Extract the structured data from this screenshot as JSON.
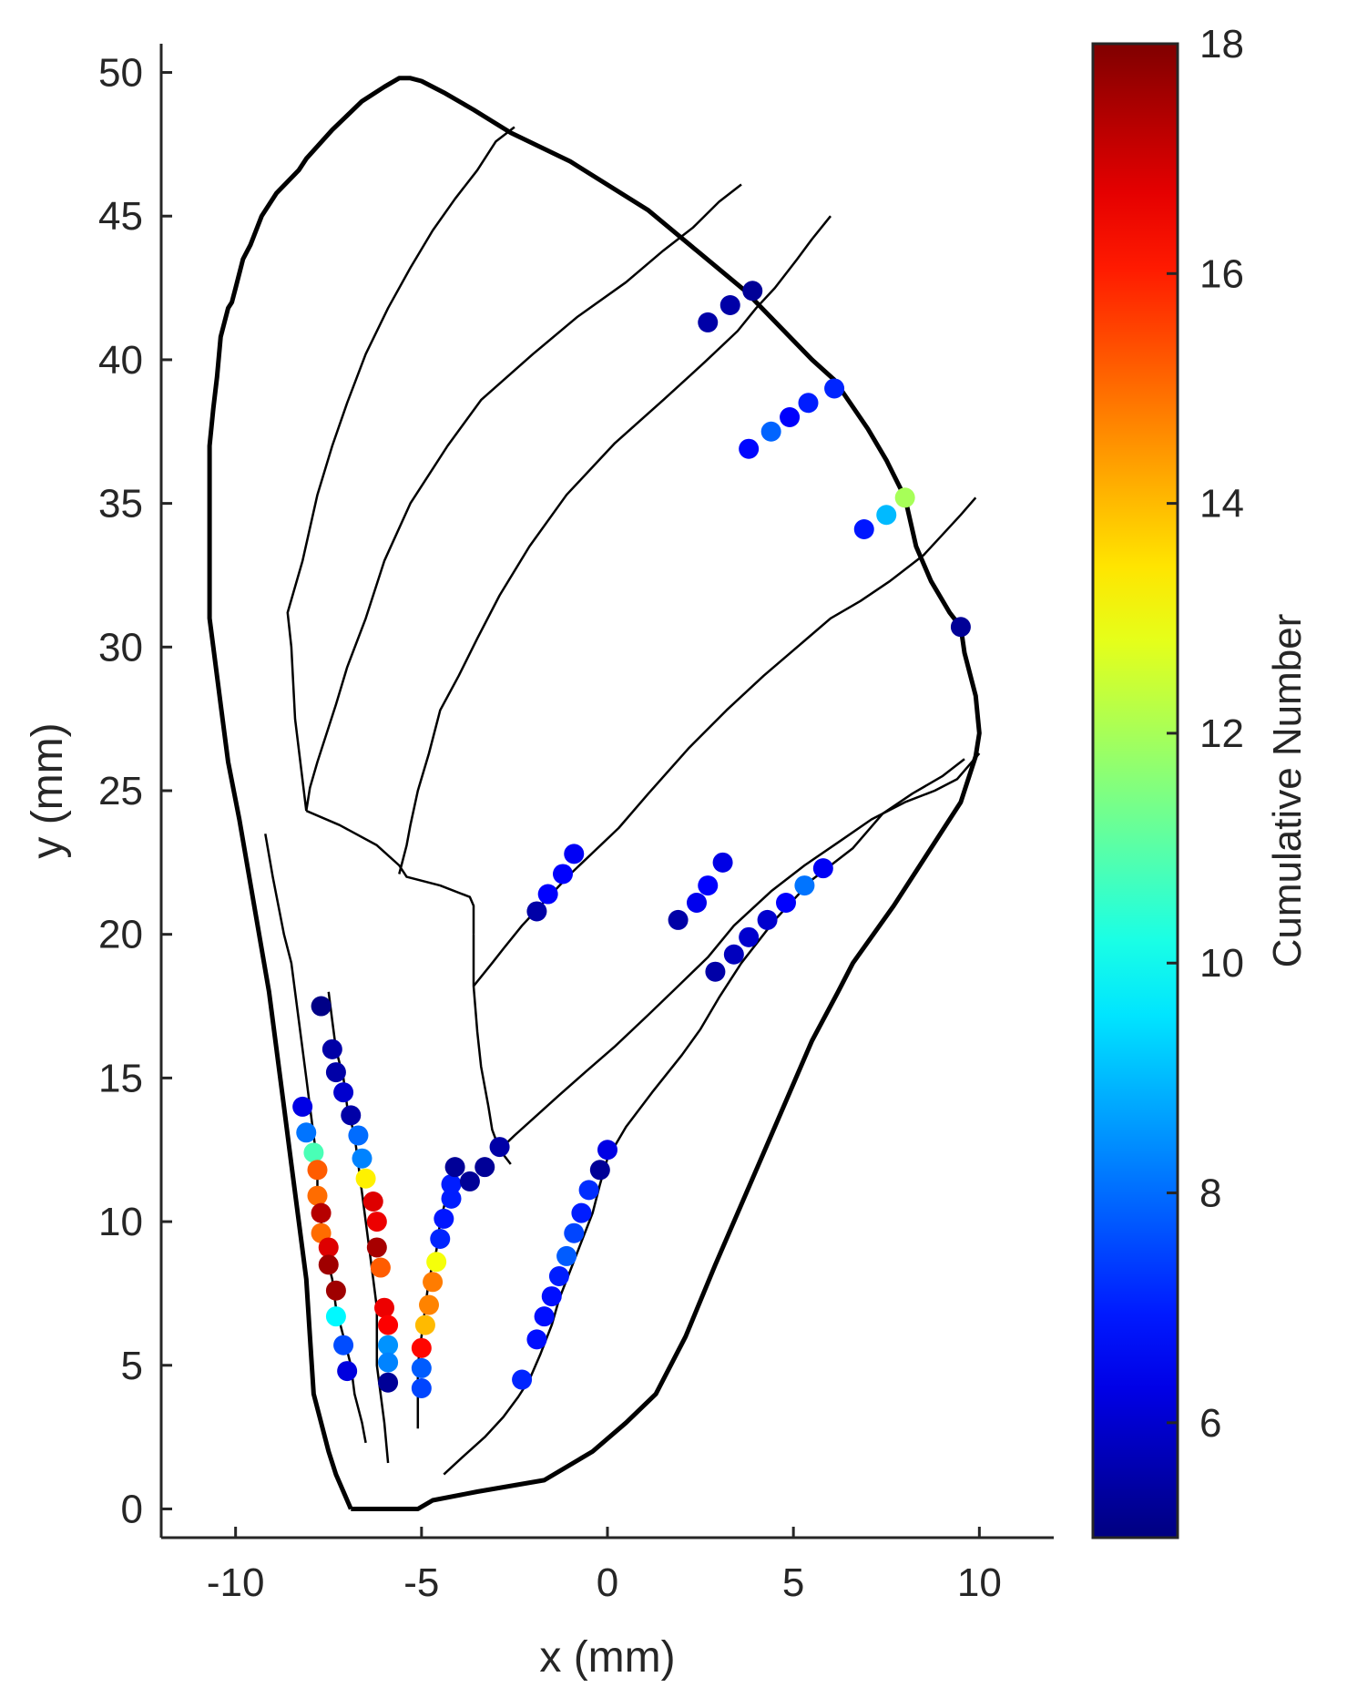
{
  "chart_data": {
    "type": "scatter",
    "title": "",
    "xlabel": "x (mm)",
    "ylabel": "y (mm)",
    "xlim": [
      -12,
      12
    ],
    "ylim": [
      -1,
      51
    ],
    "xticks": [
      -10,
      -5,
      0,
      5,
      10
    ],
    "yticks": [
      0,
      5,
      10,
      15,
      20,
      25,
      30,
      35,
      40,
      45,
      50
    ],
    "grid": false,
    "colorbar": {
      "label": "Cumulative Number",
      "range": [
        5,
        18
      ],
      "ticks": [
        6,
        8,
        10,
        12,
        14,
        16,
        18
      ],
      "colormap": "jet"
    },
    "outline": [
      [
        -6.9,
        0
      ],
      [
        -5.1,
        0
      ],
      [
        -4.7,
        0.3
      ],
      [
        -3.5,
        0.6
      ],
      [
        -1.7,
        1
      ],
      [
        -0.4,
        2
      ],
      [
        0.5,
        3
      ],
      [
        1.3,
        4
      ],
      [
        2.1,
        6
      ],
      [
        2.9,
        8.5
      ],
      [
        3.9,
        11.5
      ],
      [
        4.9,
        14.5
      ],
      [
        5.5,
        16.3
      ],
      [
        6.2,
        18
      ],
      [
        6.6,
        19
      ],
      [
        7.7,
        21
      ],
      [
        8.6,
        22.8
      ],
      [
        9.5,
        24.6
      ],
      [
        9.9,
        26.2
      ],
      [
        10,
        27
      ],
      [
        9.9,
        28.3
      ],
      [
        9.6,
        29.8
      ],
      [
        9.5,
        30.7
      ],
      [
        9.2,
        31.2
      ],
      [
        8.7,
        32.3
      ],
      [
        8.3,
        33.5
      ],
      [
        8,
        35.2
      ],
      [
        7.5,
        36.5
      ],
      [
        7,
        37.6
      ],
      [
        6.1,
        39.3
      ],
      [
        5.5,
        40
      ],
      [
        3.7,
        42.4
      ],
      [
        2.4,
        43.8
      ],
      [
        1.1,
        45.2
      ],
      [
        -1,
        46.9
      ],
      [
        -2.6,
        47.9
      ],
      [
        -3.6,
        48.7
      ],
      [
        -4.4,
        49.3
      ],
      [
        -5,
        49.7
      ],
      [
        -5.3,
        49.8
      ],
      [
        -5.6,
        49.8
      ],
      [
        -6,
        49.5
      ],
      [
        -6.6,
        49
      ],
      [
        -7.4,
        48
      ],
      [
        -8.1,
        47
      ],
      [
        -8.3,
        46.6
      ],
      [
        -8.9,
        45.8
      ],
      [
        -9.3,
        45
      ],
      [
        -9.6,
        44
      ],
      [
        -9.8,
        43.5
      ],
      [
        -10,
        42.5
      ],
      [
        -10.1,
        42
      ],
      [
        -10.2,
        41.8
      ],
      [
        -10.4,
        40.8
      ],
      [
        -10.5,
        39.4
      ],
      [
        -10.6,
        38.3
      ],
      [
        -10.7,
        37
      ],
      [
        -10.7,
        36
      ],
      [
        -10.7,
        34.2
      ],
      [
        -10.7,
        31
      ],
      [
        -10.6,
        30
      ],
      [
        -10.4,
        28
      ],
      [
        -10.2,
        26
      ],
      [
        -9.9,
        24
      ],
      [
        -9.5,
        21
      ],
      [
        -9.1,
        18
      ],
      [
        -8.9,
        16
      ],
      [
        -8.7,
        14
      ],
      [
        -8.5,
        12
      ],
      [
        -8.3,
        10
      ],
      [
        -8.1,
        8
      ],
      [
        -8,
        6
      ],
      [
        -7.9,
        4
      ],
      [
        -7.7,
        3
      ],
      [
        -7.5,
        2
      ],
      [
        -7.3,
        1.2
      ],
      [
        -7,
        0.3
      ],
      [
        -6.9,
        0
      ]
    ],
    "inner_curves": [
      [
        [
          -9.2,
          23.5
        ],
        [
          -9,
          22
        ],
        [
          -8.7,
          20
        ],
        [
          -8.5,
          19
        ],
        [
          -8.4,
          18
        ],
        [
          -8.3,
          17
        ],
        [
          -8.2,
          16
        ],
        [
          -8.1,
          15
        ],
        [
          -8,
          14
        ],
        [
          -7.9,
          13
        ],
        [
          -7.8,
          12
        ],
        [
          -7.8,
          11
        ],
        [
          -7.7,
          10
        ],
        [
          -7.6,
          9
        ],
        [
          -7.4,
          8
        ],
        [
          -7.3,
          7
        ],
        [
          -7.1,
          6
        ],
        [
          -6.9,
          5
        ],
        [
          -6.8,
          4
        ],
        [
          -6.6,
          3
        ],
        [
          -6.5,
          2.3
        ]
      ],
      [
        [
          -7.5,
          18
        ],
        [
          -7.4,
          17
        ],
        [
          -7.3,
          16
        ],
        [
          -7.1,
          15
        ],
        [
          -7,
          14
        ],
        [
          -6.8,
          13
        ],
        [
          -6.7,
          12
        ],
        [
          -6.6,
          11
        ],
        [
          -6.5,
          10
        ],
        [
          -6.4,
          9
        ],
        [
          -6.3,
          8
        ],
        [
          -6.2,
          7
        ],
        [
          -6.2,
          6
        ],
        [
          -6.2,
          5
        ],
        [
          -6.1,
          4
        ],
        [
          -6,
          3
        ],
        [
          -5.9,
          1.6
        ]
      ],
      [
        [
          -4.1,
          11.8
        ],
        [
          -4.3,
          11
        ],
        [
          -4.5,
          10
        ],
        [
          -4.6,
          9
        ],
        [
          -4.8,
          8
        ],
        [
          -4.9,
          7
        ],
        [
          -5,
          6
        ],
        [
          -5.1,
          5
        ],
        [
          -5.1,
          4
        ],
        [
          -5.1,
          3.5
        ],
        [
          -5.1,
          2.8
        ]
      ],
      [
        [
          -4.4,
          1.2
        ],
        [
          -3.9,
          1.8
        ],
        [
          -3.3,
          2.5
        ],
        [
          -2.8,
          3.2
        ],
        [
          -2.4,
          3.9
        ],
        [
          -2.1,
          4.5
        ],
        [
          -1.8,
          5.4
        ],
        [
          -1.5,
          6.4
        ],
        [
          -1.3,
          7.3
        ],
        [
          -1,
          8.3
        ],
        [
          -0.7,
          9.3
        ],
        [
          -0.4,
          10.3
        ],
        [
          -0.2,
          11.3
        ],
        [
          0,
          12.2
        ],
        [
          0.5,
          13.3
        ],
        [
          1.2,
          14.5
        ],
        [
          2,
          15.8
        ],
        [
          2.5,
          16.7
        ],
        [
          3,
          17.8
        ],
        [
          3.6,
          19
        ],
        [
          4.5,
          20.5
        ],
        [
          5.5,
          21.9
        ],
        [
          6.6,
          23
        ],
        [
          7.4,
          24.2
        ],
        [
          8.2,
          24.9
        ],
        [
          9,
          25.5
        ],
        [
          9.6,
          26.1
        ]
      ],
      [
        [
          -8.1,
          24.3
        ],
        [
          -8,
          25.1
        ],
        [
          -7.8,
          26
        ],
        [
          -7.3,
          28
        ],
        [
          -7,
          29.3
        ],
        [
          -6.5,
          31
        ],
        [
          -6,
          33
        ],
        [
          -5.3,
          35
        ],
        [
          -4.3,
          37
        ],
        [
          -3.4,
          38.6
        ],
        [
          -2,
          40.2
        ],
        [
          -0.8,
          41.5
        ],
        [
          0.5,
          42.7
        ],
        [
          1.5,
          43.8
        ],
        [
          2.3,
          44.6
        ],
        [
          3,
          45.5
        ],
        [
          3.6,
          46.1
        ]
      ],
      [
        [
          -8.1,
          24.3
        ],
        [
          -7.2,
          23.8
        ],
        [
          -6.2,
          23.1
        ],
        [
          -5.6,
          22.4
        ],
        [
          -5.4,
          22
        ],
        [
          -4.5,
          21.7
        ],
        [
          -3.7,
          21.3
        ],
        [
          -3.6,
          21
        ],
        [
          -3.6,
          20
        ]
      ],
      [
        [
          -5.6,
          22.1
        ],
        [
          -5.4,
          23.1
        ],
        [
          -5.3,
          23.8
        ],
        [
          -5.1,
          25
        ],
        [
          -4.8,
          26.3
        ],
        [
          -4.5,
          27.8
        ],
        [
          -4,
          29
        ],
        [
          -3.5,
          30.3
        ],
        [
          -2.9,
          31.8
        ],
        [
          -2.1,
          33.5
        ],
        [
          -1.1,
          35.3
        ],
        [
          0.2,
          37.1
        ],
        [
          1.5,
          38.6
        ],
        [
          2.6,
          39.9
        ],
        [
          3.5,
          41
        ],
        [
          4,
          41.8
        ],
        [
          4.5,
          42.5
        ],
        [
          5.1,
          43.5
        ],
        [
          5.5,
          44.2
        ],
        [
          6,
          45
        ]
      ],
      [
        [
          -3.6,
          20
        ],
        [
          -3.6,
          18.2
        ],
        [
          -3.5,
          16.6
        ],
        [
          -3.4,
          15.4
        ],
        [
          -3.2,
          14
        ],
        [
          -3.1,
          13.2
        ],
        [
          -2.9,
          12.5
        ],
        [
          -2.6,
          12
        ]
      ],
      [
        [
          -3.6,
          18.2
        ],
        [
          -3.1,
          19
        ],
        [
          -2.8,
          19.5
        ],
        [
          -2.3,
          20.3
        ],
        [
          -1.8,
          21
        ],
        [
          -1,
          22.1
        ],
        [
          0.3,
          23.7
        ],
        [
          1.1,
          24.9
        ],
        [
          2.2,
          26.5
        ],
        [
          3.2,
          27.8
        ],
        [
          4.2,
          29
        ],
        [
          5.1,
          30
        ],
        [
          6,
          31
        ],
        [
          6.8,
          31.6
        ],
        [
          7.6,
          32.3
        ],
        [
          8.5,
          33.2
        ],
        [
          9,
          33.9
        ],
        [
          9.5,
          34.6
        ],
        [
          9.9,
          35.2
        ]
      ],
      [
        [
          -2.9,
          12.5
        ],
        [
          -2.5,
          13
        ],
        [
          -1.9,
          13.7
        ],
        [
          -1.3,
          14.4
        ],
        [
          -0.6,
          15.2
        ],
        [
          0.2,
          16.1
        ],
        [
          1.1,
          17.2
        ],
        [
          1.9,
          18.2
        ],
        [
          2.7,
          19.2
        ],
        [
          3.4,
          20.3
        ],
        [
          4.4,
          21.5
        ],
        [
          5.3,
          22.4
        ],
        [
          6.2,
          23.2
        ],
        [
          7.1,
          24
        ],
        [
          8,
          24.6
        ],
        [
          8.8,
          25
        ],
        [
          9.4,
          25.4
        ],
        [
          9.6,
          25.7
        ],
        [
          10,
          26.3
        ]
      ],
      [
        [
          -8.1,
          24.3
        ],
        [
          -8.4,
          27.5
        ],
        [
          -8.5,
          30
        ],
        [
          -8.6,
          31.2
        ],
        [
          -8.2,
          33
        ],
        [
          -7.8,
          35.3
        ],
        [
          -7.4,
          37
        ],
        [
          -7,
          38.5
        ],
        [
          -6.5,
          40.2
        ],
        [
          -5.9,
          41.8
        ],
        [
          -5.3,
          43.2
        ],
        [
          -4.7,
          44.5
        ],
        [
          -4.1,
          45.6
        ],
        [
          -3.5,
          46.6
        ],
        [
          -3,
          47.6
        ],
        [
          -2.5,
          48.1
        ]
      ]
    ],
    "points": [
      {
        "x": -7.7,
        "y": 17.5,
        "v": 5.1
      },
      {
        "x": -7.4,
        "y": 16.0,
        "v": 5.5
      },
      {
        "x": -7.3,
        "y": 15.2,
        "v": 5.5
      },
      {
        "x": -7.1,
        "y": 14.5,
        "v": 6.0
      },
      {
        "x": -6.9,
        "y": 13.7,
        "v": 5.5
      },
      {
        "x": -6.7,
        "y": 13.0,
        "v": 8.0
      },
      {
        "x": -6.6,
        "y": 12.2,
        "v": 8.3
      },
      {
        "x": -6.5,
        "y": 11.5,
        "v": 13.3
      },
      {
        "x": -6.3,
        "y": 10.7,
        "v": 16.8
      },
      {
        "x": -6.2,
        "y": 10.0,
        "v": 16.6
      },
      {
        "x": -6.2,
        "y": 9.1,
        "v": 17.5
      },
      {
        "x": -6.1,
        "y": 8.4,
        "v": 15.2
      },
      {
        "x": -6.0,
        "y": 7.0,
        "v": 16.6
      },
      {
        "x": -5.9,
        "y": 6.4,
        "v": 16.4
      },
      {
        "x": -5.9,
        "y": 5.7,
        "v": 8.5
      },
      {
        "x": -5.9,
        "y": 5.1,
        "v": 8.3
      },
      {
        "x": -5.9,
        "y": 4.4,
        "v": 5.3
      },
      {
        "x": -8.2,
        "y": 14.0,
        "v": 6.3
      },
      {
        "x": -8.1,
        "y": 13.1,
        "v": 8.1
      },
      {
        "x": -7.9,
        "y": 12.4,
        "v": 10.8
      },
      {
        "x": -7.8,
        "y": 11.8,
        "v": 15.2
      },
      {
        "x": -7.8,
        "y": 10.9,
        "v": 15.0
      },
      {
        "x": -7.7,
        "y": 10.3,
        "v": 17.3
      },
      {
        "x": -7.7,
        "y": 9.6,
        "v": 15.0
      },
      {
        "x": -7.5,
        "y": 9.1,
        "v": 16.8
      },
      {
        "x": -7.5,
        "y": 8.5,
        "v": 17.6
      },
      {
        "x": -7.3,
        "y": 7.6,
        "v": 17.6
      },
      {
        "x": -7.3,
        "y": 6.7,
        "v": 9.8
      },
      {
        "x": -7.1,
        "y": 5.7,
        "v": 7.6
      },
      {
        "x": -7.0,
        "y": 4.8,
        "v": 6.2
      },
      {
        "x": -4.6,
        "y": 8.6,
        "v": 13.0
      },
      {
        "x": -4.7,
        "y": 7.9,
        "v": 14.8
      },
      {
        "x": -4.8,
        "y": 7.1,
        "v": 14.7
      },
      {
        "x": -4.9,
        "y": 6.4,
        "v": 14.0
      },
      {
        "x": -5.0,
        "y": 5.6,
        "v": 16.3
      },
      {
        "x": -5.0,
        "y": 4.9,
        "v": 7.8
      },
      {
        "x": -5.0,
        "y": 4.2,
        "v": 7.5
      },
      {
        "x": -4.5,
        "y": 9.4,
        "v": 7.1
      },
      {
        "x": -4.4,
        "y": 10.1,
        "v": 6.9
      },
      {
        "x": -4.2,
        "y": 10.8,
        "v": 7.0
      },
      {
        "x": -4.2,
        "y": 11.3,
        "v": 7.0
      },
      {
        "x": -4.1,
        "y": 11.9,
        "v": 5.3
      },
      {
        "x": -3.7,
        "y": 11.4,
        "v": 5.3
      },
      {
        "x": -3.3,
        "y": 11.9,
        "v": 5.3
      },
      {
        "x": -2.9,
        "y": 12.6,
        "v": 5.5
      },
      {
        "x": -2.3,
        "y": 4.5,
        "v": 7.1
      },
      {
        "x": -1.9,
        "y": 5.9,
        "v": 6.8
      },
      {
        "x": -1.7,
        "y": 6.7,
        "v": 6.8
      },
      {
        "x": -1.5,
        "y": 7.4,
        "v": 6.8
      },
      {
        "x": -1.3,
        "y": 8.1,
        "v": 7.0
      },
      {
        "x": -1.1,
        "y": 8.8,
        "v": 7.8
      },
      {
        "x": -0.9,
        "y": 9.6,
        "v": 7.5
      },
      {
        "x": -0.7,
        "y": 10.3,
        "v": 7.0
      },
      {
        "x": -0.5,
        "y": 11.1,
        "v": 7.2
      },
      {
        "x": -0.2,
        "y": 11.8,
        "v": 5.3
      },
      {
        "x": 0,
        "y": 12.5,
        "v": 6.3
      },
      {
        "x": -1.9,
        "y": 20.8,
        "v": 5.5
      },
      {
        "x": -1.6,
        "y": 21.4,
        "v": 6.6
      },
      {
        "x": -1.2,
        "y": 22.1,
        "v": 6.6
      },
      {
        "x": -0.9,
        "y": 22.8,
        "v": 6.5
      },
      {
        "x": 1.9,
        "y": 20.5,
        "v": 5.5
      },
      {
        "x": 2.4,
        "y": 21.1,
        "v": 6.4
      },
      {
        "x": 2.7,
        "y": 21.7,
        "v": 6.6
      },
      {
        "x": 3.1,
        "y": 22.5,
        "v": 6.3
      },
      {
        "x": 2.9,
        "y": 18.7,
        "v": 5.5
      },
      {
        "x": 3.4,
        "y": 19.3,
        "v": 5.8
      },
      {
        "x": 3.8,
        "y": 19.9,
        "v": 6.0
      },
      {
        "x": 4.3,
        "y": 20.5,
        "v": 6.0
      },
      {
        "x": 4.8,
        "y": 21.1,
        "v": 6.6
      },
      {
        "x": 5.3,
        "y": 21.7,
        "v": 8.1
      },
      {
        "x": 5.8,
        "y": 22.3,
        "v": 6.5
      },
      {
        "x": 2.7,
        "y": 41.3,
        "v": 5.5
      },
      {
        "x": 3.3,
        "y": 41.9,
        "v": 5.5
      },
      {
        "x": 3.9,
        "y": 42.4,
        "v": 5.3
      },
      {
        "x": 3.8,
        "y": 36.9,
        "v": 6.7
      },
      {
        "x": 4.4,
        "y": 37.5,
        "v": 7.9
      },
      {
        "x": 4.9,
        "y": 38.0,
        "v": 6.6
      },
      {
        "x": 5.4,
        "y": 38.5,
        "v": 7.0
      },
      {
        "x": 6.1,
        "y": 39.0,
        "v": 7.1
      },
      {
        "x": 6.9,
        "y": 34.1,
        "v": 6.9
      },
      {
        "x": 7.5,
        "y": 34.6,
        "v": 9.0
      },
      {
        "x": 8.0,
        "y": 35.2,
        "v": 12.0
      },
      {
        "x": 9.5,
        "y": 30.7,
        "v": 5.3
      }
    ]
  }
}
